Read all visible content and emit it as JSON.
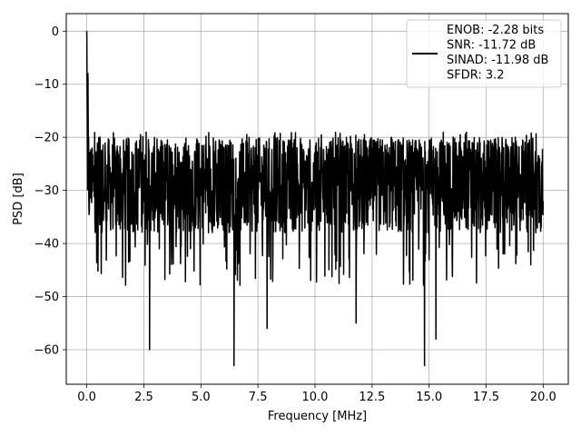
{
  "chart_data": {
    "type": "line",
    "title": "",
    "xlabel": "Frequency [MHz]",
    "ylabel": "PSD [dB]",
    "xlim": [
      -0.9,
      21.1
    ],
    "ylim": [
      -66.5,
      3.3
    ],
    "xticks": [
      0.0,
      2.5,
      5.0,
      7.5,
      10.0,
      12.5,
      15.0,
      17.5,
      20.0
    ],
    "xtick_labels": [
      "0.0",
      "2.5",
      "5.0",
      "7.5",
      "10.0",
      "12.5",
      "15.0",
      "17.5",
      "20.0"
    ],
    "yticks": [
      0,
      -10,
      -20,
      -30,
      -40,
      -50,
      -60
    ],
    "ytick_labels": [
      "0",
      "−10",
      "−20",
      "−30",
      "−40",
      "−50",
      "−60"
    ],
    "grid": true,
    "legend_position": "top-right",
    "legend": [
      "ENOB: -2.28 bits",
      "SNR: -11.72 dB",
      "SINAD: -11.98 dB",
      "SFDR: 3.2"
    ],
    "line_color": "#000000",
    "series": [
      {
        "x": [
          0.0,
          0.02,
          0.05,
          0.08,
          0.12,
          0.2,
          0.3,
          0.5,
          0.75,
          1.0,
          1.5,
          2.0,
          2.5,
          2.75,
          3.0,
          3.5,
          4.0,
          5.0,
          6.0,
          6.45,
          7.0,
          7.9,
          8.5,
          9.0,
          10.0,
          11.0,
          11.8,
          12.5,
          13.0,
          14.0,
          14.8,
          15.3,
          16.0,
          17.0,
          18.0,
          18.9,
          19.5,
          20.0
        ],
        "y": [
          0,
          -16,
          -8,
          -20,
          -24,
          -30,
          -28,
          -33,
          -30,
          -27,
          -31,
          -29,
          -32,
          -60,
          -30,
          -28,
          -30,
          -31,
          -29,
          -63,
          -30,
          -56,
          -29,
          -31,
          -30,
          -29,
          -55,
          -30,
          -31,
          -30,
          -63,
          -58,
          -30,
          -31,
          -29,
          -30,
          -31,
          -32
        ],
        "noise_band": {
          "upper": [
            -17,
            -25
          ],
          "lower": [
            -38,
            -48
          ]
        }
      }
    ]
  }
}
